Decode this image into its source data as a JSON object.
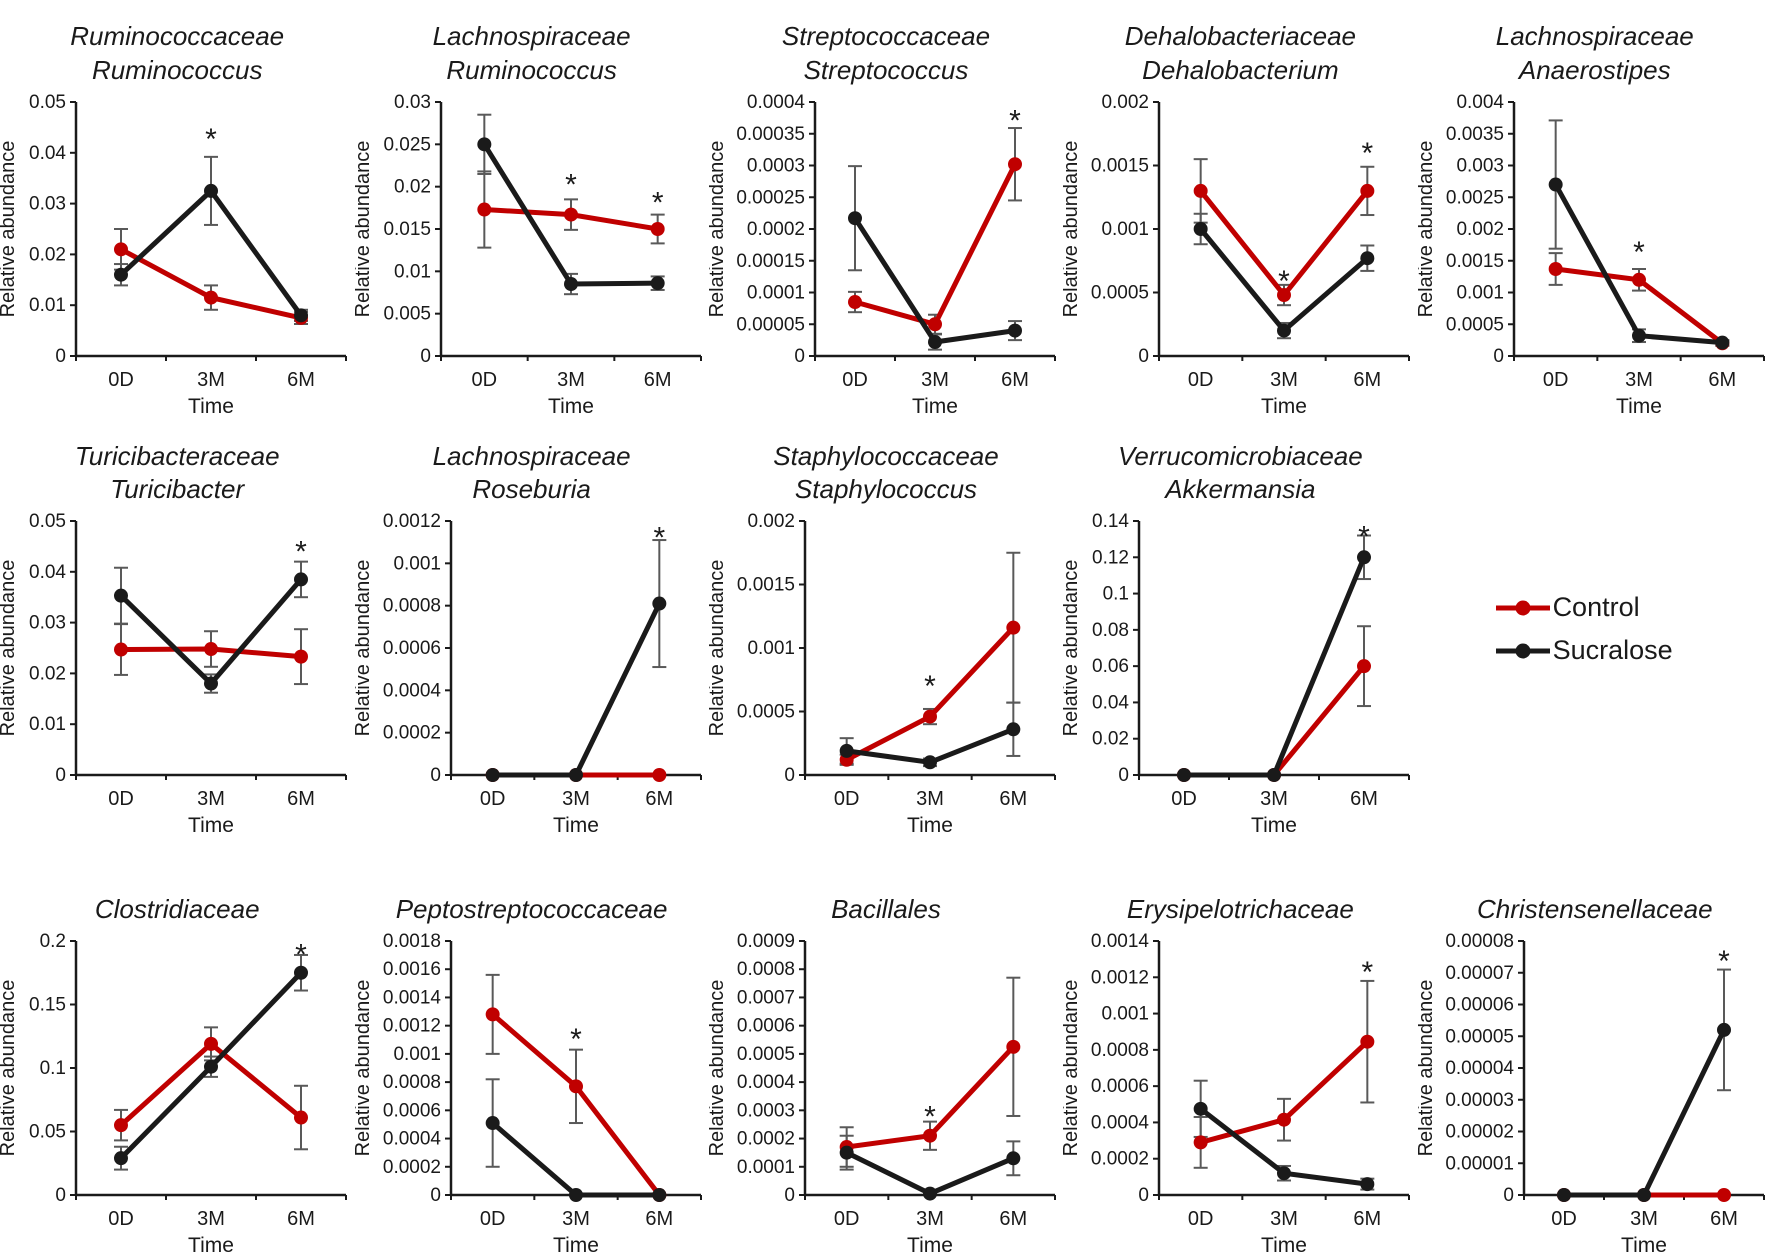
{
  "figure": {
    "ylabel": "Relative abundance",
    "xlabel": "Time",
    "categories": [
      "0D",
      "3M",
      "6M"
    ],
    "colors": {
      "control": "#C00000",
      "sucralose": "#1A1A1A",
      "error_bar": "#595959"
    }
  },
  "legend": {
    "items": [
      {
        "label": "Control",
        "color": "#C00000"
      },
      {
        "label": "Sucralose",
        "color": "#1A1A1A"
      }
    ]
  },
  "chart_data": [
    {
      "type": "line",
      "title": [
        "Ruminococcaceae",
        "Ruminococcus"
      ],
      "ylim": [
        0,
        0.05
      ],
      "ytick_labels": [
        "0",
        "0.01",
        "0.02",
        "0.03",
        "0.04",
        "0.05"
      ],
      "series": [
        {
          "name": "Control",
          "color": "#C00000",
          "values": [
            0.021,
            0.0115,
            0.0075
          ],
          "errors": [
            0.004,
            0.0024,
            0.0012
          ]
        },
        {
          "name": "Sucralose",
          "color": "#1A1A1A",
          "values": [
            0.016,
            0.0325,
            0.008
          ],
          "errors": [
            0.0021,
            0.0067,
            0.0011
          ]
        }
      ],
      "stars": [
        {
          "x": 1,
          "y": 0.0445
        }
      ]
    },
    {
      "type": "line",
      "title": [
        "Lachnospiraceae",
        "Ruminococcus"
      ],
      "ylim": [
        0,
        0.03
      ],
      "ytick_labels": [
        "0",
        "0.005",
        "0.01",
        "0.015",
        "0.02",
        "0.025",
        "0.03"
      ],
      "series": [
        {
          "name": "Control",
          "color": "#C00000",
          "values": [
            0.0173,
            0.0167,
            0.015
          ],
          "errors": [
            0.0045,
            0.0018,
            0.0017
          ]
        },
        {
          "name": "Sucralose",
          "color": "#1A1A1A",
          "values": [
            0.025,
            0.0085,
            0.0086
          ],
          "errors": [
            0.0035,
            0.0012,
            0.0008
          ]
        }
      ],
      "stars": [
        {
          "x": 1,
          "y": 0.0213
        },
        {
          "x": 2,
          "y": 0.0192
        }
      ]
    },
    {
      "type": "line",
      "title": [
        "Streptococcaceae",
        "Streptococcus"
      ],
      "ylim": [
        0,
        0.0004
      ],
      "ytick_labels": [
        "0",
        "0.00005",
        "0.0001",
        "0.00015",
        "0.0002",
        "0.00025",
        "0.0003",
        "0.00035",
        "0.0004"
      ],
      "series": [
        {
          "name": "Control",
          "color": "#C00000",
          "values": [
            8.5e-05,
            5e-05,
            0.000302
          ],
          "errors": [
            1.6e-05,
            1.5e-05,
            5.7e-05
          ]
        },
        {
          "name": "Sucralose",
          "color": "#1A1A1A",
          "values": [
            0.000217,
            2.2e-05,
            4e-05
          ],
          "errors": [
            8.2e-05,
            1.2e-05,
            1.5e-05
          ]
        }
      ],
      "stars": [
        {
          "x": 2,
          "y": 0.000385
        }
      ]
    },
    {
      "type": "line",
      "title": [
        "Dehalobacteriaceae",
        "Dehalobacterium"
      ],
      "ylim": [
        0,
        0.002
      ],
      "ytick_labels": [
        "0",
        "0.0005",
        "0.001",
        "0.0015",
        "0.002"
      ],
      "series": [
        {
          "name": "Control",
          "color": "#C00000",
          "values": [
            0.0013,
            0.00048,
            0.0013
          ],
          "errors": [
            0.00025,
            8e-05,
            0.00019
          ]
        },
        {
          "name": "Sucralose",
          "color": "#1A1A1A",
          "values": [
            0.001,
            0.0002,
            0.00077
          ],
          "errors": [
            0.00012,
            6e-05,
            0.0001
          ]
        }
      ],
      "stars": [
        {
          "x": 1,
          "y": 0.00066
        },
        {
          "x": 2,
          "y": 0.00167
        }
      ]
    },
    {
      "type": "line",
      "title": [
        "Lachnospiraceae",
        "Anaerostipes"
      ],
      "ylim": [
        0,
        0.004
      ],
      "ytick_labels": [
        "0",
        "0.0005",
        "0.001",
        "0.0015",
        "0.002",
        "0.0025",
        "0.003",
        "0.0035",
        "0.004"
      ],
      "series": [
        {
          "name": "Control",
          "color": "#C00000",
          "values": [
            0.00137,
            0.0012,
            0.0002
          ],
          "errors": [
            0.00025,
            0.00017,
            4e-05
          ]
        },
        {
          "name": "Sucralose",
          "color": "#1A1A1A",
          "values": [
            0.0027,
            0.00032,
            0.00021
          ],
          "errors": [
            0.00101,
            0.0001,
            4e-05
          ]
        }
      ],
      "stars": [
        {
          "x": 1,
          "y": 0.00178
        }
      ]
    },
    {
      "type": "line",
      "title": [
        "Turicibacteraceae",
        "Turicibacter"
      ],
      "ylim": [
        0,
        0.05
      ],
      "ytick_labels": [
        "0",
        "0.01",
        "0.02",
        "0.03",
        "0.04",
        "0.05"
      ],
      "series": [
        {
          "name": "Control",
          "color": "#C00000",
          "values": [
            0.0247,
            0.0248,
            0.0233
          ],
          "errors": [
            0.005,
            0.0035,
            0.0054
          ]
        },
        {
          "name": "Sucralose",
          "color": "#1A1A1A",
          "values": [
            0.0353,
            0.018,
            0.0385
          ],
          "errors": [
            0.0055,
            0.0018,
            0.0035
          ]
        }
      ],
      "stars": [
        {
          "x": 2,
          "y": 0.0458
        }
      ]
    },
    {
      "type": "line",
      "title": [
        "Lachnospiraceae",
        "Roseburia"
      ],
      "ylim": [
        0,
        0.0012
      ],
      "ytick_labels": [
        "0",
        "0.0002",
        "0.0004",
        "0.0006",
        "0.0008",
        "0.001",
        "0.0012"
      ],
      "series": [
        {
          "name": "Control",
          "color": "#C00000",
          "values": [
            0,
            0,
            0
          ],
          "errors": [
            0,
            0,
            0
          ]
        },
        {
          "name": "Sucralose",
          "color": "#1A1A1A",
          "values": [
            0,
            0,
            0.00081
          ],
          "errors": [
            0,
            0,
            0.0003
          ]
        }
      ],
      "stars": [
        {
          "x": 2,
          "y": 0.001165
        }
      ]
    },
    {
      "type": "line",
      "title": [
        "Staphylococcaceae",
        "Staphylococcus"
      ],
      "ylim": [
        0,
        0.002
      ],
      "ytick_labels": [
        "0",
        "0.0005",
        "0.001",
        "0.0015",
        "0.002"
      ],
      "series": [
        {
          "name": "Control",
          "color": "#C00000",
          "values": [
            0.00012,
            0.00046,
            0.00116
          ],
          "errors": [
            4e-05,
            6e-05,
            0.00059
          ]
        },
        {
          "name": "Sucralose",
          "color": "#1A1A1A",
          "values": [
            0.00019,
            0.0001,
            0.00036
          ],
          "errors": [
            0.0001,
            3e-05,
            0.00021
          ]
        }
      ],
      "stars": [
        {
          "x": 1,
          "y": 0.00077
        }
      ]
    },
    {
      "type": "line",
      "title": [
        "Verrucomicrobiaceae",
        "Akkermansia"
      ],
      "ylim": [
        0,
        0.14
      ],
      "ytick_labels": [
        "0",
        "0.02",
        "0.04",
        "0.06",
        "0.08",
        "0.1",
        "0.12",
        "0.14"
      ],
      "series": [
        {
          "name": "Control",
          "color": "#C00000",
          "values": [
            0,
            0,
            0.06
          ],
          "errors": [
            0,
            0,
            0.022
          ]
        },
        {
          "name": "Sucralose",
          "color": "#1A1A1A",
          "values": [
            0,
            0,
            0.12
          ],
          "errors": [
            0,
            0,
            0.012
          ]
        }
      ],
      "stars": [
        {
          "x": 2,
          "y": 0.1365
        }
      ]
    },
    {
      "type": "line",
      "title": [
        "Clostridiaceae"
      ],
      "ylim": [
        0,
        0.2
      ],
      "ytick_labels": [
        "0",
        "0.05",
        "0.1",
        "0.15",
        "0.2"
      ],
      "series": [
        {
          "name": "Control",
          "color": "#C00000",
          "values": [
            0.055,
            0.119,
            0.061
          ],
          "errors": [
            0.012,
            0.013,
            0.025
          ]
        },
        {
          "name": "Sucralose",
          "color": "#1A1A1A",
          "values": [
            0.029,
            0.101,
            0.175
          ],
          "errors": [
            0.009,
            0.008,
            0.014
          ]
        }
      ],
      "stars": [
        {
          "x": 2,
          "y": 0.1965
        }
      ]
    },
    {
      "type": "line",
      "title": [
        "Peptostreptococcaceae"
      ],
      "ylim": [
        0,
        0.0018
      ],
      "ytick_labels": [
        "0",
        "0.0002",
        "0.0004",
        "0.0006",
        "0.0008",
        "0.001",
        "0.0012",
        "0.0014",
        "0.0016",
        "0.0018"
      ],
      "series": [
        {
          "name": "Control",
          "color": "#C00000",
          "values": [
            0.00128,
            0.00077,
            0
          ],
          "errors": [
            0.00028,
            0.00026,
            0
          ]
        },
        {
          "name": "Sucralose",
          "color": "#1A1A1A",
          "values": [
            0.00051,
            0,
            0
          ],
          "errors": [
            0.00031,
            0,
            0
          ]
        }
      ],
      "stars": [
        {
          "x": 1,
          "y": 0.00117
        }
      ]
    },
    {
      "type": "line",
      "title": [
        "Bacillales"
      ],
      "ylim": [
        0,
        0.0009
      ],
      "ytick_labels": [
        "0",
        "0.0001",
        "0.0002",
        "0.0003",
        "0.0004",
        "0.0005",
        "0.0006",
        "0.0007",
        "0.0008",
        "0.0009"
      ],
      "series": [
        {
          "name": "Control",
          "color": "#C00000",
          "values": [
            0.00017,
            0.00021,
            0.000525
          ],
          "errors": [
            7e-05,
            5e-05,
            0.000245
          ]
        },
        {
          "name": "Sucralose",
          "color": "#1A1A1A",
          "values": [
            0.00015,
            5e-06,
            0.00013
          ],
          "errors": [
            6e-05,
            0,
            6e-05
          ]
        }
      ],
      "stars": [
        {
          "x": 1,
          "y": 0.00031
        }
      ]
    },
    {
      "type": "line",
      "title": [
        "Erysipelotrichaceae"
      ],
      "ylim": [
        0,
        0.0014
      ],
      "ytick_labels": [
        "0",
        "0.0002",
        "0.0004",
        "0.0006",
        "0.0008",
        "0.001",
        "0.0012",
        "0.0014"
      ],
      "series": [
        {
          "name": "Control",
          "color": "#C00000",
          "values": [
            0.00029,
            0.000415,
            0.000845
          ],
          "errors": [
            0.00014,
            0.000115,
            0.000335
          ]
        },
        {
          "name": "Sucralose",
          "color": "#1A1A1A",
          "values": [
            0.000475,
            0.00012,
            6e-05
          ],
          "errors": [
            0.000155,
            4e-05,
            3e-05
          ]
        }
      ],
      "stars": [
        {
          "x": 2,
          "y": 0.00128
        }
      ]
    },
    {
      "type": "line",
      "title": [
        "Christensenellaceae"
      ],
      "ylim": [
        0,
        8e-05
      ],
      "ytick_labels": [
        "0",
        "0.00001",
        "0.00002",
        "0.00003",
        "0.00004",
        "0.00005",
        "0.00006",
        "0.00007",
        "0.00008"
      ],
      "series": [
        {
          "name": "Control",
          "color": "#C00000",
          "values": [
            0,
            0,
            0
          ],
          "errors": [
            0,
            0,
            0
          ]
        },
        {
          "name": "Sucralose",
          "color": "#1A1A1A",
          "values": [
            0,
            0,
            5.2e-05
          ],
          "errors": [
            0,
            0,
            1.9e-05
          ]
        }
      ],
      "stars": [
        {
          "x": 2,
          "y": 7.65e-05
        }
      ]
    }
  ]
}
